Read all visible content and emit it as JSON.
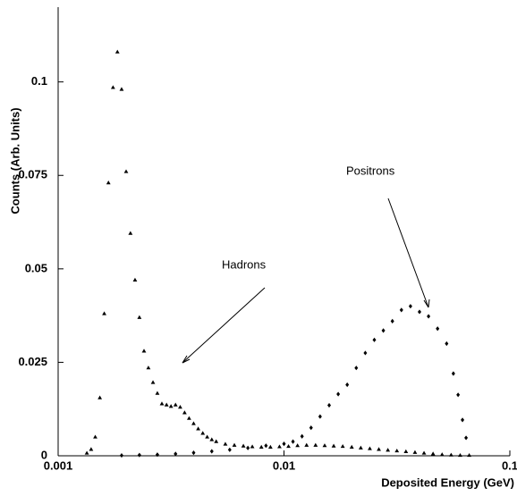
{
  "chart_data": {
    "type": "scatter",
    "xlabel": "Deposited Energy (GeV)",
    "ylabel": "Counts (Arb. Units)",
    "xscale": "log",
    "xlim": [
      0.001,
      0.1
    ],
    "xticks": [
      0.001,
      0.01,
      0.1
    ],
    "ylim": [
      0,
      0.12
    ],
    "yticks": [
      0,
      0.025,
      0.05,
      0.075,
      0.1
    ],
    "annotations": [
      "Hadrons",
      "Positrons"
    ],
    "series": [
      {
        "marker": "triangle",
        "color": "#000000",
        "x": [
          0.00134,
          0.0014,
          0.00146,
          0.00153,
          0.0016,
          0.00167,
          0.00175,
          0.00183,
          0.00191,
          0.002,
          0.00209,
          0.00219,
          0.00229,
          0.0024,
          0.00251,
          0.00263,
          0.00275,
          0.00288,
          0.00302,
          0.00316,
          0.00331,
          0.00347,
          0.00363,
          0.0038,
          0.00398,
          0.00417,
          0.00437,
          0.00457,
          0.00479,
          0.00501,
          0.0055,
          0.00603,
          0.00661,
          0.00724,
          0.00794,
          0.00871,
          0.00955,
          0.01047,
          0.01148,
          0.01259,
          0.0138,
          0.01514,
          0.0166,
          0.0182,
          0.01995,
          0.02188,
          0.02399,
          0.0263,
          0.02884,
          0.03162,
          0.03467,
          0.03802,
          0.04169,
          0.04571,
          0.05012,
          0.05495,
          0.06026,
          0.06607
        ],
        "values": [
          0.0007,
          0.0017,
          0.005,
          0.0155,
          0.038,
          0.073,
          0.0985,
          0.108,
          0.098,
          0.076,
          0.0595,
          0.047,
          0.037,
          0.028,
          0.0235,
          0.0196,
          0.0167,
          0.0139,
          0.0136,
          0.0132,
          0.0136,
          0.013,
          0.0115,
          0.01,
          0.0086,
          0.0072,
          0.006,
          0.005,
          0.0043,
          0.0038,
          0.0031,
          0.0028,
          0.0026,
          0.0024,
          0.0023,
          0.0023,
          0.0024,
          0.0025,
          0.0027,
          0.0028,
          0.0028,
          0.0027,
          0.0026,
          0.0025,
          0.0023,
          0.0021,
          0.0019,
          0.0017,
          0.0015,
          0.0013,
          0.0011,
          0.0009,
          0.0007,
          0.0005,
          0.0003,
          0.0002,
          0.0001,
          0.0001
        ]
      },
      {
        "marker": "diamond",
        "color": "#000000",
        "x": [
          0.00191,
          0.00229,
          0.00275,
          0.00331,
          0.00398,
          0.00479,
          0.00575,
          0.00692,
          0.00832,
          0.01,
          0.01096,
          0.01202,
          0.01318,
          0.01445,
          0.01585,
          0.01738,
          0.01905,
          0.02089,
          0.02291,
          0.02512,
          0.02754,
          0.0302,
          0.03311,
          0.03631,
          0.03981,
          0.04365,
          0.04786,
          0.05248,
          0.05623,
          0.059,
          0.0617,
          0.064
        ],
        "values": [
          0.0001,
          0.0002,
          0.0003,
          0.0005,
          0.0008,
          0.0012,
          0.0016,
          0.0021,
          0.0027,
          0.0032,
          0.0038,
          0.0052,
          0.0075,
          0.0105,
          0.0135,
          0.0165,
          0.019,
          0.0235,
          0.0275,
          0.031,
          0.0335,
          0.036,
          0.039,
          0.04,
          0.0385,
          0.0373,
          0.034,
          0.03,
          0.022,
          0.0163,
          0.0096,
          0.0048
        ]
      }
    ]
  }
}
